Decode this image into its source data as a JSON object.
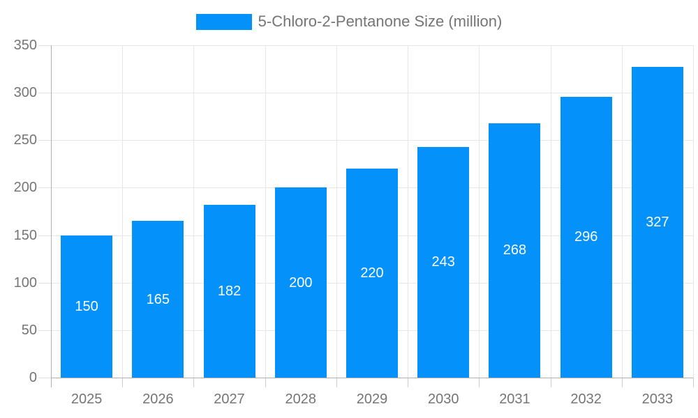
{
  "chart_data": {
    "type": "bar",
    "title": "5-Chloro-2-Pentanone Size (million)",
    "categories": [
      "2025",
      "2026",
      "2027",
      "2028",
      "2029",
      "2030",
      "2031",
      "2032",
      "2033"
    ],
    "series": [
      {
        "name": "5-Chloro-2-Pentanone Size (million)",
        "values": [
          150,
          165,
          182,
          200,
          220,
          243,
          268,
          296,
          327
        ]
      }
    ],
    "value_labels": [
      "150",
      "165",
      "182",
      "200",
      "220",
      "243",
      "268",
      "296",
      "327"
    ],
    "xlabel": "",
    "ylabel": "",
    "ylim": [
      0,
      350
    ],
    "y_ticks": [
      0,
      50,
      100,
      150,
      200,
      250,
      300,
      350
    ],
    "grid": true,
    "legend_position": "top-center",
    "colors": {
      "bar": "#0591fa",
      "bar_value_text": "#ffffff",
      "axis_text": "#757575",
      "gridline": "#e6e6e6",
      "axis_line": "#b0b0b0",
      "tick": "#cccccc"
    }
  },
  "legend": {
    "items": [
      {
        "label": "5-Chloro-2-Pentanone Size (million)",
        "swatch_color": "#0591fa"
      }
    ]
  }
}
